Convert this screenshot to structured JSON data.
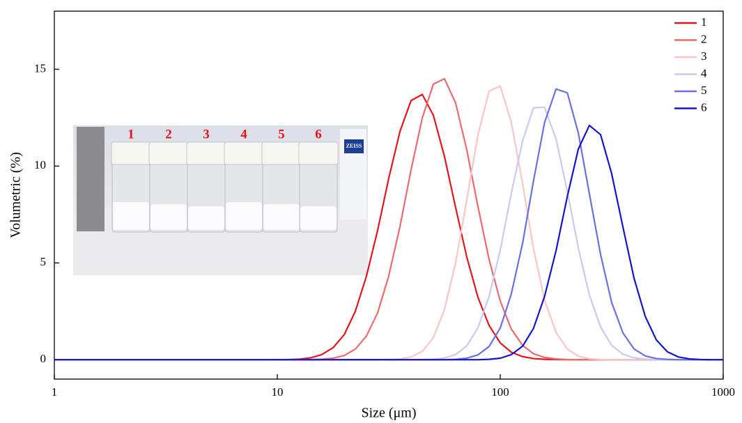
{
  "chart_data": {
    "type": "line",
    "xlabel": "Size (μm)",
    "ylabel": "Volumetric (%)",
    "log_x": true,
    "xlim": [
      1,
      1000
    ],
    "xticks": [
      1,
      10,
      100,
      1000
    ],
    "ylim": [
      -1,
      18
    ],
    "yticks": [
      0,
      5,
      10,
      15
    ],
    "legend": "upper right",
    "x": [
      1,
      10,
      11.2,
      12.6,
      14.1,
      15.8,
      17.8,
      20,
      22.4,
      25.1,
      28.2,
      31.6,
      35.5,
      39.8,
      44.7,
      50.1,
      56.2,
      63.1,
      70.8,
      79.4,
      89.1,
      100,
      112,
      126,
      141,
      158,
      178,
      200,
      224,
      251,
      282,
      316,
      355,
      398,
      447,
      501,
      562,
      631,
      708,
      794,
      891,
      1000
    ],
    "series": [
      {
        "name": "1",
        "color": "#e0161c",
        "values": [
          0,
          0,
          0.01,
          0.03,
          0.1,
          0.26,
          0.62,
          1.31,
          2.51,
          4.31,
          6.69,
          9.36,
          11.79,
          13.38,
          13.7,
          12.63,
          10.5,
          7.85,
          5.3,
          3.23,
          1.77,
          0.87,
          0.39,
          0.16,
          0.06,
          0.02,
          0.01,
          0,
          0,
          0,
          0,
          0,
          0,
          0,
          0,
          0,
          0,
          0,
          0,
          0,
          0,
          0
        ]
      },
      {
        "name": "2",
        "color": "#ec6a6d",
        "values": [
          0,
          0,
          0,
          0,
          0.01,
          0.03,
          0.08,
          0.22,
          0.55,
          1.22,
          2.43,
          4.32,
          6.88,
          9.8,
          12.48,
          14.23,
          14.51,
          13.25,
          10.83,
          7.92,
          5.18,
          3.03,
          1.59,
          0.74,
          0.31,
          0.12,
          0.04,
          0.01,
          0,
          0,
          0,
          0,
          0,
          0,
          0,
          0,
          0,
          0,
          0,
          0,
          0,
          0
        ]
      },
      {
        "name": "3",
        "color": "#f8c6c6",
        "values": [
          0,
          0,
          0,
          0,
          0,
          0,
          0,
          0,
          0,
          0,
          0,
          0.01,
          0.04,
          0.14,
          0.43,
          1.14,
          2.59,
          5.01,
          8.26,
          11.59,
          13.87,
          14.13,
          12.28,
          9.09,
          5.73,
          3.08,
          1.41,
          0.55,
          0.18,
          0.05,
          0.01,
          0,
          0,
          0,
          0,
          0,
          0,
          0,
          0,
          0,
          0,
          0
        ]
      },
      {
        "name": "4",
        "color": "#c9c9f2",
        "values": [
          0,
          0,
          0,
          0,
          0,
          0,
          0,
          0,
          0,
          0,
          0,
          0,
          0,
          0,
          0.01,
          0.03,
          0.09,
          0.27,
          0.72,
          1.64,
          3.26,
          5.66,
          8.57,
          11.31,
          13.01,
          13.04,
          11.4,
          8.69,
          5.77,
          3.34,
          1.69,
          0.74,
          0.29,
          0.1,
          0.03,
          0.01,
          0,
          0,
          0,
          0,
          0,
          0
        ]
      },
      {
        "name": "5",
        "color": "#6b6fe2",
        "values": [
          0,
          0,
          0,
          0,
          0,
          0,
          0,
          0,
          0,
          0,
          0,
          0,
          0,
          0,
          0,
          0,
          0,
          0.02,
          0.08,
          0.25,
          0.68,
          1.64,
          3.38,
          6.02,
          9.24,
          12.24,
          13.98,
          13.78,
          11.71,
          8.58,
          5.42,
          2.96,
          1.39,
          0.56,
          0.2,
          0.06,
          0.02,
          0,
          0,
          0,
          0,
          0
        ]
      },
      {
        "name": "6",
        "color": "#1414cc",
        "values": [
          0,
          0,
          0,
          0,
          0,
          0,
          0,
          0,
          0,
          0,
          0,
          0,
          0,
          0,
          0,
          0,
          0,
          0,
          0,
          0,
          0.02,
          0.08,
          0.26,
          0.7,
          1.62,
          3.26,
          5.64,
          8.44,
          10.88,
          12.1,
          11.62,
          9.61,
          6.86,
          4.22,
          2.24,
          1.03,
          0.41,
          0.14,
          0.04,
          0.01,
          0,
          0
        ]
      }
    ]
  },
  "inset": {
    "labels": [
      "1",
      "2",
      "3",
      "4",
      "5",
      "6"
    ],
    "brand": "ZEISS"
  }
}
